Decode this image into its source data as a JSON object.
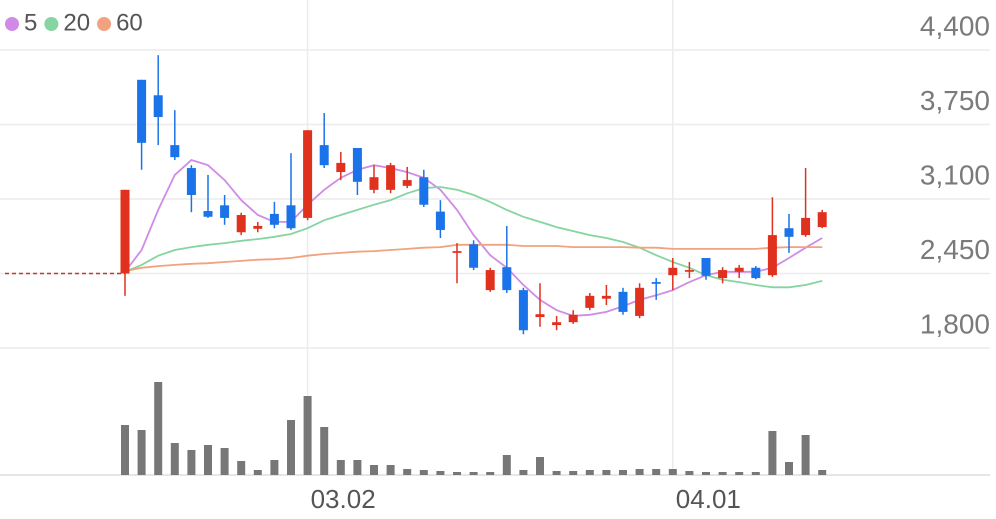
{
  "chart_data": {
    "type": "candlestick",
    "categories": [
      null,
      null,
      null,
      null,
      null,
      null,
      null,
      null,
      null,
      null,
      null,
      "03.02",
      null,
      null,
      null,
      null,
      null,
      null,
      null,
      null,
      null,
      null,
      null,
      null,
      null,
      null,
      null,
      null,
      null,
      null,
      null,
      null,
      null,
      "04.01",
      null,
      null,
      null,
      null,
      null,
      null,
      null,
      null,
      null
    ],
    "open": [
      2450,
      4140,
      4005,
      3570,
      3370,
      2995,
      3045,
      2810,
      2840,
      2970,
      3045,
      2935,
      3570,
      3335,
      3545,
      3180,
      3180,
      3215,
      3290,
      2990,
      2630,
      2705,
      2305,
      2505,
      2305,
      2070,
      2000,
      2025,
      2150,
      2230,
      2290,
      2080,
      2375,
      2435,
      2465,
      2585,
      2410,
      2465,
      2500,
      2435,
      2845,
      2785,
      2855
    ],
    "high": [
      3180,
      4140,
      4355,
      3875,
      3395,
      3310,
      3135,
      2980,
      2900,
      3075,
      3500,
      3700,
      3850,
      3510,
      3545,
      3395,
      3415,
      3380,
      3355,
      3090,
      2715,
      2740,
      2500,
      2865,
      2325,
      2365,
      2080,
      2130,
      2280,
      2350,
      2325,
      2365,
      2410,
      2585,
      2550,
      2585,
      2505,
      2525,
      2515,
      3115,
      2970,
      3370,
      3005
    ],
    "low": [
      2255,
      3355,
      3570,
      3440,
      2985,
      2935,
      2875,
      2785,
      2810,
      2845,
      2830,
      2915,
      3370,
      3265,
      3135,
      3150,
      3150,
      3195,
      3030,
      2760,
      2365,
      2480,
      2290,
      2280,
      1920,
      1985,
      1955,
      2010,
      2130,
      2175,
      2090,
      2060,
      2220,
      2305,
      2410,
      2395,
      2365,
      2410,
      2400,
      2420,
      2630,
      2770,
      2845
    ],
    "close": [
      3180,
      3590,
      3815,
      3465,
      3135,
      2945,
      2935,
      2960,
      2865,
      2875,
      2845,
      3700,
      3395,
      3415,
      3250,
      3290,
      3395,
      3265,
      3050,
      2830,
      2645,
      2500,
      2480,
      2305,
      1955,
      2095,
      2025,
      2090,
      2255,
      2255,
      2115,
      2325,
      2360,
      2500,
      2480,
      2430,
      2480,
      2500,
      2410,
      2785,
      2770,
      2935,
      2985
    ],
    "up_color": "#e0301e",
    "down_color": "#1a73e8",
    "series": [
      {
        "name": "5",
        "color": "#d08be6",
        "values": [
          2465,
          2655,
          3005,
          3310,
          3440,
          3395,
          3265,
          3090,
          2960,
          2900,
          2900,
          3050,
          3180,
          3285,
          3355,
          3395,
          3370,
          3335,
          3285,
          3180,
          3005,
          2785,
          2610,
          2500,
          2350,
          2220,
          2130,
          2080,
          2090,
          2115,
          2165,
          2220,
          2260,
          2305,
          2375,
          2435,
          2465,
          2465,
          2465,
          2500,
          2585,
          2675,
          2760
        ]
      },
      {
        "name": "20",
        "color": "#86d4a1",
        "values": [
          2465,
          2525,
          2605,
          2655,
          2680,
          2700,
          2715,
          2735,
          2750,
          2770,
          2795,
          2845,
          2915,
          2960,
          3005,
          3050,
          3090,
          3150,
          3195,
          3205,
          3180,
          3135,
          3075,
          3005,
          2945,
          2900,
          2855,
          2820,
          2785,
          2760,
          2725,
          2675,
          2610,
          2550,
          2500,
          2435,
          2395,
          2375,
          2350,
          2330,
          2330,
          2350,
          2385
        ]
      },
      {
        "name": "60",
        "color": "#f1a27e",
        "values": [
          2470,
          2500,
          2515,
          2525,
          2535,
          2540,
          2550,
          2560,
          2570,
          2575,
          2585,
          2605,
          2620,
          2630,
          2640,
          2645,
          2655,
          2665,
          2675,
          2680,
          2700,
          2700,
          2700,
          2700,
          2690,
          2690,
          2690,
          2680,
          2680,
          2680,
          2680,
          2675,
          2675,
          2665,
          2665,
          2665,
          2665,
          2665,
          2665,
          2675,
          2680,
          2680,
          2680
        ]
      }
    ],
    "base_price": 2450,
    "volume": {
      "color": "#777777",
      "ylim": [
        0,
        100
      ],
      "values": [
        50,
        45,
        93,
        32,
        25,
        30,
        27,
        14,
        5,
        15,
        55,
        79,
        48,
        15,
        15,
        10,
        10,
        6,
        5,
        4,
        3,
        3,
        3,
        20,
        5,
        18,
        4,
        4,
        5,
        5,
        5,
        6,
        6,
        6,
        4,
        3,
        3,
        3,
        3,
        44,
        13,
        40,
        5
      ]
    },
    "ylim": [
      1800,
      4400
    ],
    "yticks": [
      {
        "value": 4400,
        "label": "4,400"
      },
      {
        "value": 3750,
        "label": "3,750"
      },
      {
        "value": 3100,
        "label": "3,100"
      },
      {
        "value": 2450,
        "label": "2,450"
      },
      {
        "value": 1800,
        "label": "1,800"
      }
    ],
    "grid": true
  }
}
